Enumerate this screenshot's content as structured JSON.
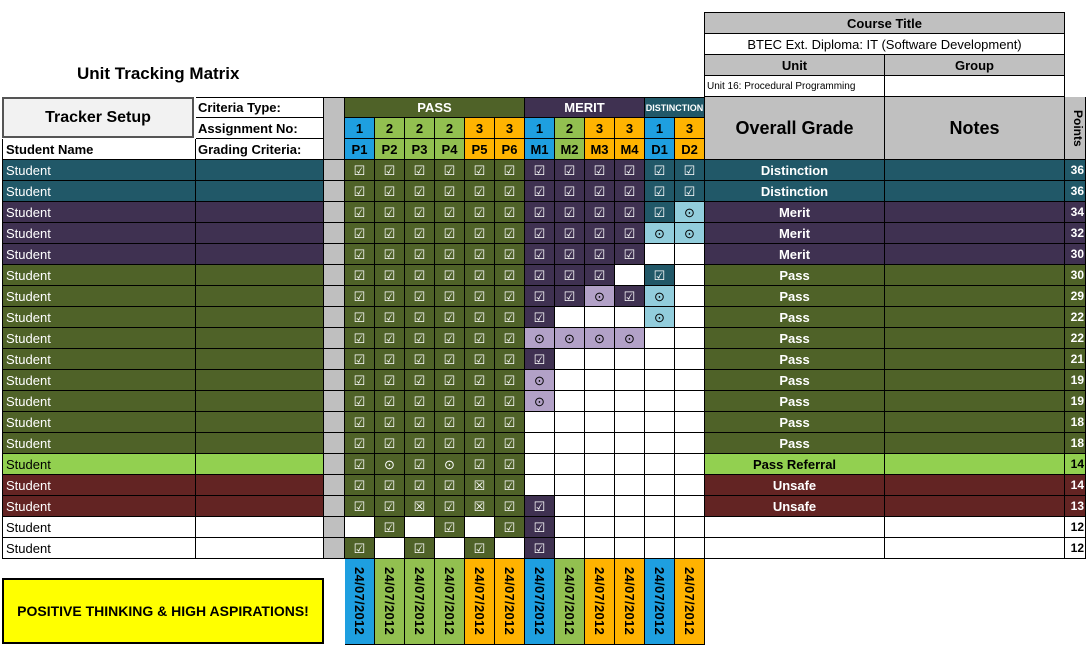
{
  "header": {
    "title": "Unit Tracking Matrix",
    "course_title_label": "Course Title",
    "course_title_value": "BTEC Ext. Diploma: IT (Software Development)",
    "unit_label": "Unit",
    "group_label": "Group",
    "unit_value": "Unit 16: Procedural Programming",
    "group_value": ""
  },
  "setup": {
    "tracker_setup": "Tracker Setup",
    "criteria_type": "Criteria Type:",
    "assignment_no": "Assignment No:",
    "grading_criteria": "Grading Criteria:",
    "student_name": "Student Name"
  },
  "groups": {
    "pass": "PASS",
    "merit": "MERIT",
    "distinction": "DISTINCTION"
  },
  "right_headers": {
    "overall_grade": "Overall Grade",
    "notes": "Notes",
    "points": "Points"
  },
  "criteria": [
    {
      "code": "P1",
      "assignment": "1",
      "group": "pass"
    },
    {
      "code": "P2",
      "assignment": "2",
      "group": "pass"
    },
    {
      "code": "P3",
      "assignment": "2",
      "group": "pass"
    },
    {
      "code": "P4",
      "assignment": "2",
      "group": "pass"
    },
    {
      "code": "P5",
      "assignment": "3",
      "group": "pass"
    },
    {
      "code": "P6",
      "assignment": "3",
      "group": "pass"
    },
    {
      "code": "M1",
      "assignment": "1",
      "group": "merit"
    },
    {
      "code": "M2",
      "assignment": "2",
      "group": "merit"
    },
    {
      "code": "M3",
      "assignment": "3",
      "group": "merit"
    },
    {
      "code": "M4",
      "assignment": "3",
      "group": "merit"
    },
    {
      "code": "D1",
      "assignment": "1",
      "group": "distinction"
    },
    {
      "code": "D2",
      "assignment": "3",
      "group": "distinction"
    }
  ],
  "assignment_colors": {
    "1": "#1e9fe0",
    "2": "#92c050",
    "3": "#ffb300"
  },
  "grade_colors": {
    "Distinction": "#215868",
    "Merit": "#3f3151",
    "Pass": "#4f6228",
    "Pass Referral": "#92d050",
    "Unsafe": "#632423",
    "": "#ffffff"
  },
  "cell_colors": {
    "pass_achieved": "#4f6228",
    "merit_achieved": "#3f3151",
    "distinction_achieved": "#215868",
    "merit_partial": "#b2a1c7",
    "distinction_partial": "#92cddc",
    "referral_fill": "#4f6228",
    "unsafe_fill": "#632423"
  },
  "symbols": {
    "y": "☑",
    "o": "⊙",
    "x": "☒",
    "": ""
  },
  "rows": [
    {
      "name": "Student",
      "grade": "Distinction",
      "points": "36",
      "cells": [
        "y",
        "y",
        "y",
        "y",
        "y",
        "y",
        "y",
        "y",
        "y",
        "y",
        "y",
        "y"
      ]
    },
    {
      "name": "Student",
      "grade": "Distinction",
      "points": "36",
      "cells": [
        "y",
        "y",
        "y",
        "y",
        "y",
        "y",
        "y",
        "y",
        "y",
        "y",
        "y",
        "y"
      ]
    },
    {
      "name": "Student",
      "grade": "Merit",
      "points": "34",
      "cells": [
        "y",
        "y",
        "y",
        "y",
        "y",
        "y",
        "y",
        "y",
        "y",
        "y",
        "y",
        "o"
      ]
    },
    {
      "name": "Student",
      "grade": "Merit",
      "points": "32",
      "cells": [
        "y",
        "y",
        "y",
        "y",
        "y",
        "y",
        "y",
        "y",
        "y",
        "y",
        "o",
        "o"
      ]
    },
    {
      "name": "Student",
      "grade": "Merit",
      "points": "30",
      "cells": [
        "y",
        "y",
        "y",
        "y",
        "y",
        "y",
        "y",
        "y",
        "y",
        "y",
        "",
        ""
      ]
    },
    {
      "name": "Student",
      "grade": "Pass",
      "points": "30",
      "cells": [
        "y",
        "y",
        "y",
        "y",
        "y",
        "y",
        "y",
        "y",
        "y",
        "",
        "y",
        ""
      ]
    },
    {
      "name": "Student",
      "grade": "Pass",
      "points": "29",
      "cells": [
        "y",
        "y",
        "y",
        "y",
        "y",
        "y",
        "y",
        "y",
        "o",
        "y",
        "o",
        ""
      ]
    },
    {
      "name": "Student",
      "grade": "Pass",
      "points": "22",
      "cells": [
        "y",
        "y",
        "y",
        "y",
        "y",
        "y",
        "y",
        "",
        "",
        "",
        "o",
        ""
      ]
    },
    {
      "name": "Student",
      "grade": "Pass",
      "points": "22",
      "cells": [
        "y",
        "y",
        "y",
        "y",
        "y",
        "y",
        "o",
        "o",
        "o",
        "o",
        "",
        ""
      ]
    },
    {
      "name": "Student",
      "grade": "Pass",
      "points": "21",
      "cells": [
        "y",
        "y",
        "y",
        "y",
        "y",
        "y",
        "y",
        "",
        "",
        "",
        "",
        ""
      ]
    },
    {
      "name": "Student",
      "grade": "Pass",
      "points": "19",
      "cells": [
        "y",
        "y",
        "y",
        "y",
        "y",
        "y",
        "o",
        "",
        "",
        "",
        "",
        ""
      ]
    },
    {
      "name": "Student",
      "grade": "Pass",
      "points": "19",
      "cells": [
        "y",
        "y",
        "y",
        "y",
        "y",
        "y",
        "o",
        "",
        "",
        "",
        "",
        ""
      ]
    },
    {
      "name": "Student",
      "grade": "Pass",
      "points": "18",
      "cells": [
        "y",
        "y",
        "y",
        "y",
        "y",
        "y",
        "",
        "",
        "",
        "",
        "",
        ""
      ]
    },
    {
      "name": "Student",
      "grade": "Pass",
      "points": "18",
      "cells": [
        "y",
        "y",
        "y",
        "y",
        "y",
        "y",
        "",
        "",
        "",
        "",
        "",
        ""
      ]
    },
    {
      "name": "Student",
      "grade": "Pass Referral",
      "points": "14",
      "cells": [
        "y",
        "o",
        "y",
        "o",
        "y",
        "y",
        "",
        "",
        "",
        "",
        "",
        ""
      ]
    },
    {
      "name": "Student",
      "grade": "Unsafe",
      "points": "14",
      "cells": [
        "y",
        "y",
        "y",
        "y",
        "x",
        "y",
        "",
        "",
        "",
        "",
        "",
        ""
      ]
    },
    {
      "name": "Student",
      "grade": "Unsafe",
      "points": "13",
      "cells": [
        "y",
        "y",
        "x",
        "y",
        "x",
        "y",
        "y",
        "",
        "",
        "",
        "",
        ""
      ]
    },
    {
      "name": "Student",
      "grade": "",
      "points": "12",
      "cells": [
        "",
        "y",
        "",
        "y",
        "",
        "y",
        "y",
        "",
        "",
        "",
        "",
        ""
      ]
    },
    {
      "name": "Student",
      "grade": "",
      "points": "12",
      "cells": [
        "y",
        "",
        "y",
        "",
        "y",
        "",
        "y",
        "",
        "",
        "",
        "",
        ""
      ]
    }
  ],
  "dates": [
    "24/07/2012",
    "24/07/2012",
    "24/07/2012",
    "24/07/2012",
    "24/07/2012",
    "24/07/2012",
    "24/07/2012",
    "24/07/2012",
    "24/07/2012",
    "24/07/2012",
    "24/07/2012",
    "24/07/2012"
  ],
  "banner": "POSITIVE THINKING & HIGH ASPIRATIONS!"
}
